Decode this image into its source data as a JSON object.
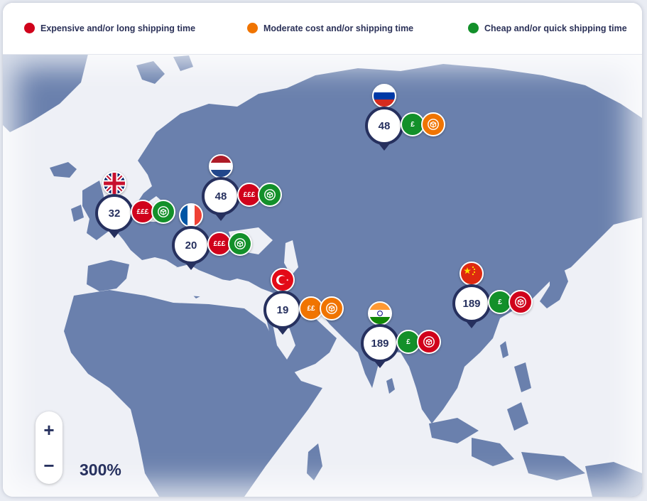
{
  "legend": {
    "items": [
      {
        "label": "Expensive and/or long shipping time",
        "color": "#d0021b"
      },
      {
        "label": "Moderate cost and/or shipping time",
        "color": "#f07400"
      },
      {
        "label": "Cheap and/or quick shipping time",
        "color": "#13902a"
      }
    ]
  },
  "map": {
    "land_color": "#6a80ad",
    "markers": [
      {
        "country": "United Kingdom",
        "flag": "uk-flag",
        "value": "32",
        "cost": "£££",
        "cost_color": "#d0021b",
        "shipping_color": "#13902a"
      },
      {
        "country": "France",
        "flag": "france-flag",
        "value": "20",
        "cost": "£££",
        "cost_color": "#d0021b",
        "shipping_color": "#13902a"
      },
      {
        "country": "Netherlands",
        "flag": "netherlands-flag",
        "value": "48",
        "cost": "£££",
        "cost_color": "#d0021b",
        "shipping_color": "#13902a"
      },
      {
        "country": "Russia",
        "flag": "russia-flag",
        "value": "48",
        "cost": "£",
        "cost_color": "#13902a",
        "shipping_color": "#f07400"
      },
      {
        "country": "Turkey",
        "flag": "turkey-flag",
        "value": "19",
        "cost": "££",
        "cost_color": "#f07400",
        "shipping_color": "#f07400"
      },
      {
        "country": "India",
        "flag": "india-flag",
        "value": "189",
        "cost": "£",
        "cost_color": "#13902a",
        "shipping_color": "#d0021b"
      },
      {
        "country": "China",
        "flag": "china-flag",
        "value": "189",
        "cost": "£",
        "cost_color": "#13902a",
        "shipping_color": "#d0021b"
      }
    ]
  },
  "zoom": {
    "plus": "+",
    "minus": "−",
    "level": "300%"
  }
}
